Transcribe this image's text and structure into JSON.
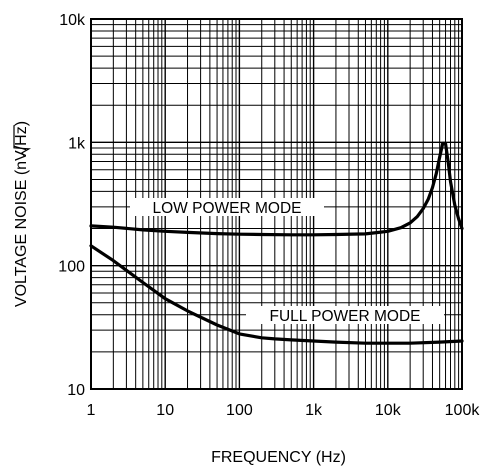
{
  "chart_data": {
    "type": "line",
    "title": "",
    "xlabel": "FREQUENCY (Hz)",
    "ylabel_prefix": "VOLTAGE NOISE (nV/",
    "ylabel_radicand": "Hz",
    "ylabel_suffix": ")",
    "x_scale": "log",
    "y_scale": "log",
    "xlim": [
      1,
      100000
    ],
    "ylim": [
      10,
      10000
    ],
    "grid": true,
    "x_ticks": [
      {
        "value": 1,
        "label": "1"
      },
      {
        "value": 10,
        "label": "10"
      },
      {
        "value": 100,
        "label": "100"
      },
      {
        "value": 1000,
        "label": "1k"
      },
      {
        "value": 10000,
        "label": "10k"
      },
      {
        "value": 100000,
        "label": "100k"
      }
    ],
    "y_ticks": [
      {
        "value": 10,
        "label": "10"
      },
      {
        "value": 100,
        "label": "100"
      },
      {
        "value": 1000,
        "label": "1k"
      },
      {
        "value": 10000,
        "label": "10k"
      }
    ],
    "series": [
      {
        "name": "LOW POWER MODE",
        "x": [
          1,
          2,
          5,
          10,
          20,
          50,
          100,
          200,
          500,
          1000,
          2000,
          5000,
          10000,
          15000,
          20000,
          25000,
          30000,
          35000,
          40000,
          45000,
          50000,
          55000,
          60000,
          65000,
          70000,
          80000,
          90000,
          100000
        ],
        "y": [
          210,
          205,
          195,
          190,
          186,
          182,
          180,
          179,
          178,
          178,
          179,
          181,
          190,
          203,
          222,
          250,
          290,
          345,
          430,
          560,
          760,
          980,
          980,
          700,
          480,
          310,
          240,
          200
        ]
      },
      {
        "name": "FULL POWER MODE",
        "x": [
          1,
          2,
          5,
          10,
          20,
          50,
          100,
          200,
          300,
          500,
          1000,
          2000,
          5000,
          10000,
          20000,
          50000,
          100000
        ],
        "y": [
          145,
          110,
          73,
          54,
          43,
          33,
          28,
          26,
          25.5,
          25,
          24.5,
          24,
          23.5,
          23.5,
          23.5,
          24,
          24.5
        ]
      }
    ]
  }
}
